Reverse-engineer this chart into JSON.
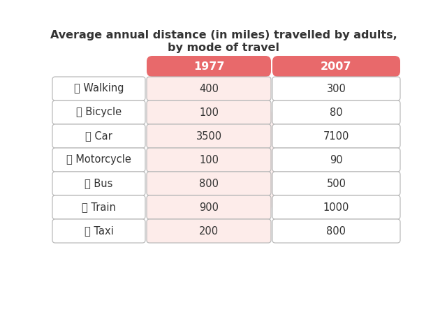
{
  "title_line1": "Average annual distance (in miles) travelled by adults,",
  "title_line2": "by mode of travel",
  "header_1977": "1977",
  "header_2007": "2007",
  "header_bg_color": "#e8696b",
  "header_text_color": "#ffffff",
  "rows": [
    {
      "label": "🚶 Walking",
      "val1": "400",
      "val2": "300"
    },
    {
      "label": "🚲 Bicycle",
      "val1": "100",
      "val2": "80"
    },
    {
      "label": "🚗 Car",
      "val1": "3500",
      "val2": "7100"
    },
    {
      "label": "🏄 Motorcycle",
      "val1": "100",
      "val2": "90"
    },
    {
      "label": "🚌 Bus",
      "val1": "800",
      "val2": "500"
    },
    {
      "label": "🚂 Train",
      "val1": "900",
      "val2": "1000"
    },
    {
      "label": "🚖 Taxi",
      "val1": "200",
      "val2": "800"
    }
  ],
  "col1_bg": "#fdecea",
  "border_color": "#bbbbbb",
  "text_color": "#333333",
  "bg_color": "#ffffff",
  "title_fontsize": 11.5,
  "cell_fontsize": 10.5,
  "header_fontsize": 11.5
}
